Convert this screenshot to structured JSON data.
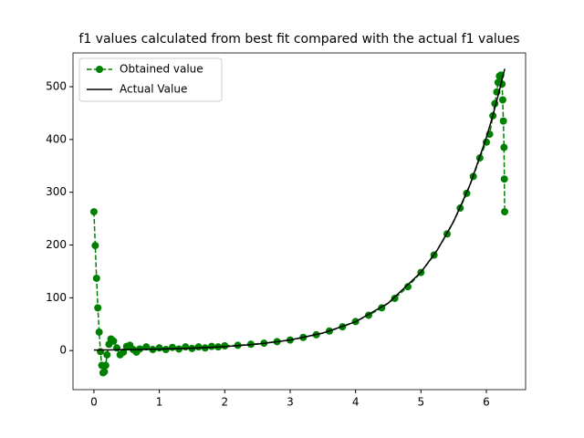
{
  "chart_data": {
    "type": "line",
    "title": "f1 values calculated from best fit compared with the actual f1 values",
    "xlim": [
      -0.32,
      6.6
    ],
    "ylim": [
      -74,
      564
    ],
    "xticks": [
      0,
      1,
      2,
      3,
      4,
      5,
      6
    ],
    "yticks": [
      0,
      100,
      200,
      300,
      400,
      500
    ],
    "legend": "upper left",
    "series": [
      {
        "name": "Obtained value",
        "color": "#008000",
        "linestyle": "dashed",
        "marker": true,
        "x": [
          0,
          0.02,
          0.04,
          0.06,
          0.08,
          0.1,
          0.12,
          0.14,
          0.16,
          0.18,
          0.2,
          0.23,
          0.26,
          0.3,
          0.35,
          0.4,
          0.45,
          0.5,
          0.55,
          0.6,
          0.65,
          0.7,
          0.8,
          0.9,
          1.0,
          1.1,
          1.2,
          1.3,
          1.4,
          1.5,
          1.6,
          1.7,
          1.8,
          1.9,
          2.0,
          2.2,
          2.4,
          2.6,
          2.8,
          3.0,
          3.2,
          3.4,
          3.6,
          3.8,
          4.0,
          4.2,
          4.4,
          4.6,
          4.8,
          5.0,
          5.2,
          5.4,
          5.6,
          5.7,
          5.8,
          5.9,
          6.0,
          6.05,
          6.1,
          6.13,
          6.16,
          6.18,
          6.2,
          6.22,
          6.24,
          6.25,
          6.26,
          6.27,
          6.275,
          6.28
        ],
        "values": [
          263,
          199,
          137,
          81,
          35,
          -2,
          -28,
          -42,
          -40,
          -28,
          -8,
          12,
          22,
          18,
          5,
          -8,
          -3,
          8,
          10,
          2,
          -3,
          3,
          7,
          2,
          5,
          2,
          6,
          3,
          7,
          4,
          7,
          5,
          8,
          7,
          9,
          10,
          12,
          14,
          17,
          20,
          25,
          30,
          37,
          45,
          55,
          67,
          81,
          99,
          121,
          148,
          181,
          221,
          270,
          298,
          330,
          365,
          395,
          410,
          445,
          468,
          490,
          508,
          520,
          522,
          505,
          475,
          435,
          385,
          325,
          263
        ]
      },
      {
        "name": "Actual Value",
        "color": "#000000",
        "linestyle": "solid",
        "marker": false,
        "x": [
          0,
          0.5,
          1,
          1.5,
          2,
          2.5,
          3,
          3.5,
          4,
          4.5,
          5,
          5.25,
          5.5,
          5.75,
          6,
          6.1,
          6.2,
          6.28
        ],
        "values": [
          1,
          1.65,
          2.72,
          4.48,
          7.39,
          12.18,
          20.09,
          33.12,
          54.6,
          90.02,
          148.41,
          190.57,
          244.69,
          314.19,
          403.43,
          445.86,
          492.75,
          533.79
        ]
      }
    ]
  }
}
